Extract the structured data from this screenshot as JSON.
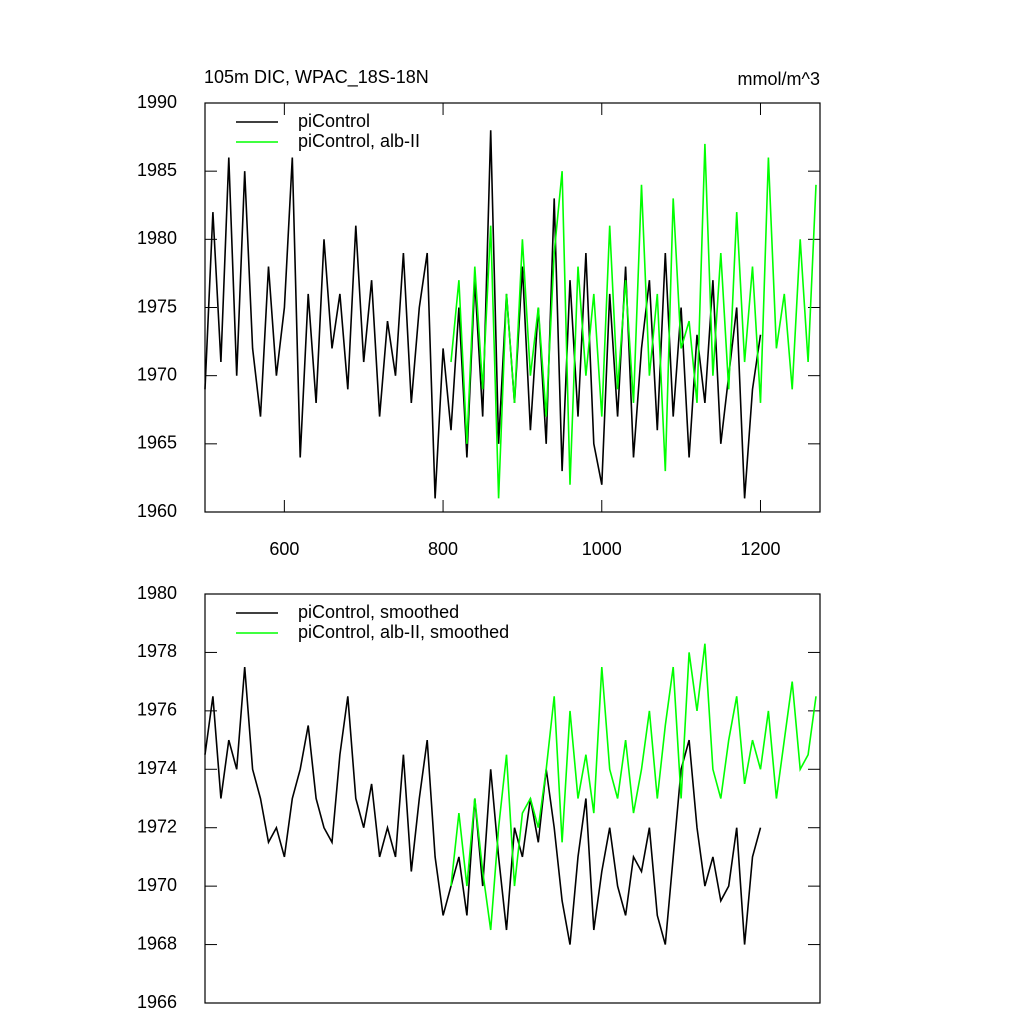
{
  "chart_data": [
    {
      "type": "line",
      "title": "105m DIC, WPAC_18S-18N",
      "units": "mmol/m^3",
      "xlim": [
        500,
        1275
      ],
      "xticks": [
        600,
        800,
        1000,
        1200
      ],
      "ylim": [
        1960,
        1990
      ],
      "yticks": [
        1960,
        1965,
        1970,
        1975,
        1980,
        1985,
        1990
      ],
      "legend": "upper left",
      "series": [
        {
          "name": "piControl",
          "color": "#000000",
          "x": [
            500,
            510,
            520,
            530,
            540,
            550,
            560,
            570,
            580,
            590,
            600,
            610,
            620,
            630,
            640,
            650,
            660,
            670,
            680,
            690,
            700,
            710,
            720,
            730,
            740,
            750,
            760,
            770,
            780,
            790,
            800,
            810,
            820,
            830,
            840,
            850,
            860,
            870,
            880,
            890,
            900,
            910,
            920,
            930,
            940,
            950,
            960,
            970,
            980,
            990,
            1000,
            1010,
            1020,
            1030,
            1040,
            1050,
            1060,
            1070,
            1080,
            1090,
            1100,
            1110,
            1120,
            1130,
            1140,
            1150,
            1160,
            1170,
            1180,
            1190,
            1200
          ],
          "values": [
            1969,
            1982,
            1971,
            1986,
            1970,
            1985,
            1972,
            1967,
            1978,
            1970,
            1975,
            1986,
            1964,
            1976,
            1968,
            1980,
            1972,
            1976,
            1969,
            1981,
            1971,
            1977,
            1967,
            1974,
            1970,
            1979,
            1968,
            1975,
            1979,
            1961,
            1972,
            1966,
            1975,
            1964,
            1977,
            1967,
            1988,
            1965,
            1976,
            1968,
            1978,
            1966,
            1975,
            1965,
            1983,
            1963,
            1977,
            1967,
            1979,
            1965,
            1962,
            1976,
            1967,
            1978,
            1964,
            1972,
            1977,
            1966,
            1979,
            1967,
            1975,
            1964,
            1973,
            1968,
            1977,
            1965,
            1970,
            1975,
            1961,
            1969,
            1973
          ]
        },
        {
          "name": "piControl, alb-II",
          "color": "#00ff00",
          "x": [
            810,
            820,
            830,
            840,
            850,
            860,
            870,
            880,
            890,
            900,
            910,
            920,
            930,
            940,
            950,
            960,
            970,
            980,
            990,
            1000,
            1010,
            1020,
            1030,
            1040,
            1050,
            1060,
            1070,
            1080,
            1090,
            1100,
            1110,
            1120,
            1130,
            1140,
            1150,
            1160,
            1170,
            1180,
            1190,
            1200,
            1210,
            1220,
            1230,
            1240,
            1250,
            1260,
            1270
          ],
          "values": [
            1971,
            1977,
            1965,
            1978,
            1969,
            1981,
            1961,
            1976,
            1968,
            1980,
            1970,
            1975,
            1967,
            1979,
            1985,
            1962,
            1978,
            1970,
            1976,
            1967,
            1981,
            1969,
            1977,
            1968,
            1984,
            1970,
            1976,
            1963,
            1983,
            1972,
            1974,
            1968,
            1987,
            1970,
            1979,
            1969,
            1982,
            1971,
            1978,
            1968,
            1986,
            1972,
            1976,
            1969,
            1980,
            1971,
            1984
          ]
        }
      ]
    },
    {
      "type": "line",
      "xlim": [
        500,
        1275
      ],
      "ylim": [
        1966,
        1980
      ],
      "yticks": [
        1966,
        1968,
        1970,
        1972,
        1974,
        1976,
        1978,
        1980
      ],
      "legend": "upper left",
      "series": [
        {
          "name": "piControl, smoothed",
          "color": "#000000",
          "x": [
            500,
            510,
            520,
            530,
            540,
            550,
            560,
            570,
            580,
            590,
            600,
            610,
            620,
            630,
            640,
            650,
            660,
            670,
            680,
            690,
            700,
            710,
            720,
            730,
            740,
            750,
            760,
            770,
            780,
            790,
            800,
            810,
            820,
            830,
            840,
            850,
            860,
            870,
            880,
            890,
            900,
            910,
            920,
            930,
            940,
            950,
            960,
            970,
            980,
            990,
            1000,
            1010,
            1020,
            1030,
            1040,
            1050,
            1060,
            1070,
            1080,
            1090,
            1100,
            1110,
            1120,
            1130,
            1140,
            1150,
            1160,
            1170,
            1180,
            1190,
            1200
          ],
          "values": [
            1974.5,
            1976.5,
            1973,
            1975,
            1974,
            1977.5,
            1974,
            1973,
            1971.5,
            1972,
            1971,
            1973,
            1974,
            1975.5,
            1973,
            1972,
            1971.5,
            1974.5,
            1976.5,
            1973,
            1972,
            1973.5,
            1971,
            1972,
            1971,
            1974.5,
            1970.5,
            1973,
            1975,
            1971,
            1969,
            1970,
            1971,
            1969,
            1973,
            1970,
            1974,
            1971,
            1968.5,
            1972,
            1971,
            1973,
            1971.5,
            1974,
            1972,
            1969.5,
            1968,
            1971,
            1973,
            1968.5,
            1970.5,
            1972,
            1970,
            1969,
            1971,
            1970.5,
            1972,
            1969,
            1968,
            1971,
            1974,
            1975,
            1972,
            1970,
            1971,
            1969.5,
            1970,
            1972,
            1968,
            1971,
            1972
          ]
        },
        {
          "name": "piControl, alb-II, smoothed",
          "color": "#00ff00",
          "x": [
            810,
            820,
            830,
            840,
            850,
            860,
            870,
            880,
            890,
            900,
            910,
            920,
            930,
            940,
            950,
            960,
            970,
            980,
            990,
            1000,
            1010,
            1020,
            1030,
            1040,
            1050,
            1060,
            1070,
            1080,
            1090,
            1100,
            1110,
            1120,
            1130,
            1140,
            1150,
            1160,
            1170,
            1180,
            1190,
            1200,
            1210,
            1220,
            1230,
            1240,
            1250,
            1260,
            1270
          ],
          "values": [
            1970,
            1972.5,
            1970,
            1973,
            1970.5,
            1968.5,
            1972,
            1974.5,
            1970,
            1972.5,
            1973,
            1972,
            1974,
            1976.5,
            1971.5,
            1976,
            1973,
            1974.5,
            1972.5,
            1977.5,
            1974,
            1973,
            1975,
            1972.5,
            1974,
            1976,
            1973,
            1975.5,
            1977.5,
            1973,
            1978,
            1976,
            1978.3,
            1974,
            1973,
            1975,
            1976.5,
            1973.5,
            1975,
            1974,
            1976,
            1973,
            1975,
            1977,
            1974,
            1974.5,
            1976.5
          ]
        }
      ]
    }
  ]
}
